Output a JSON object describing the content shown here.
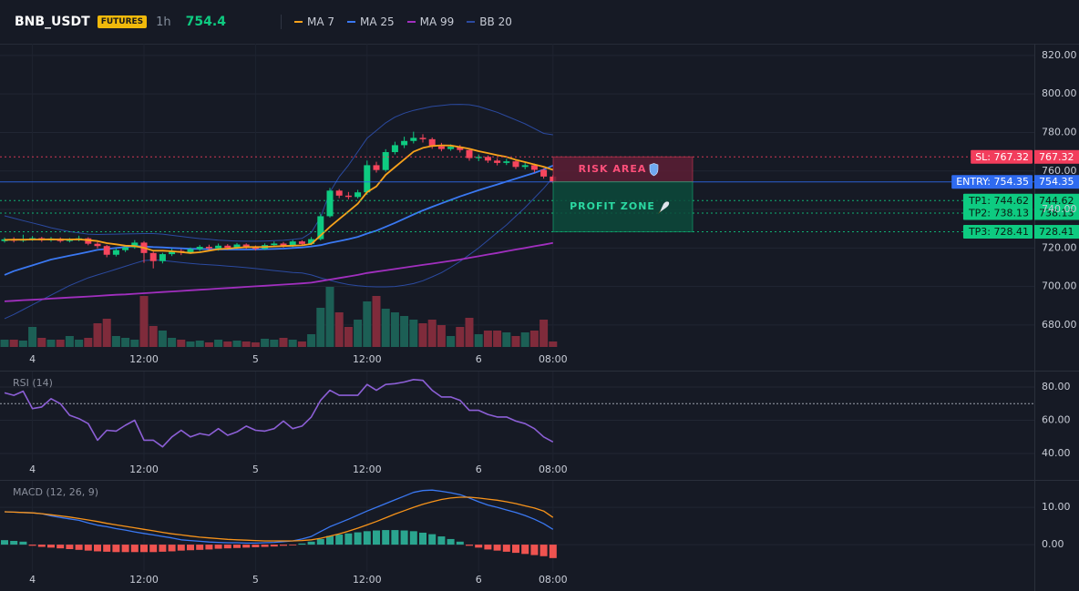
{
  "header": {
    "symbol": "BNB_USDT",
    "badge": "FUTURES",
    "interval": "1h",
    "price": 754.4
  },
  "chart_data": [
    {
      "type": "candlestick",
      "categories": [
        null,
        null,
        null,
        "4",
        null,
        null,
        null,
        null,
        null,
        null,
        null,
        null,
        null,
        null,
        null,
        "12:00",
        null,
        null,
        null,
        null,
        null,
        null,
        null,
        null,
        null,
        null,
        null,
        "5",
        null,
        null,
        null,
        null,
        null,
        null,
        null,
        null,
        null,
        null,
        null,
        "12:00",
        null,
        null,
        null,
        null,
        null,
        null,
        null,
        null,
        null,
        null,
        null,
        "6",
        null,
        null,
        null,
        null,
        null,
        null,
        null,
        "08:00"
      ],
      "open": [
        723.6,
        724.5,
        723.8,
        724.6,
        725.1,
        724.0,
        724.9,
        723.6,
        724.3,
        725.0,
        722.2,
        721.0,
        716.5,
        718.9,
        720.3,
        722.8,
        717.4,
        713.2,
        716.8,
        718.5,
        717.6,
        719.4,
        720.6,
        719.8,
        721.2,
        720.1,
        721.8,
        720.4,
        719.6,
        721.5,
        722.3,
        721.0,
        723.4,
        722.1,
        724.6,
        736.5,
        749.8,
        747.2,
        746.5,
        748.9,
        763.0,
        760.5,
        769.8,
        773.4,
        775.6,
        777.2,
        776.5,
        772.8,
        771.4,
        772.6,
        770.9,
        766.7,
        767.3,
        765.4,
        764.2,
        765.0,
        762.1,
        763.0,
        760.6,
        757.1
      ],
      "high": [
        725.4,
        725.6,
        726.9,
        726.2,
        725.8,
        725.7,
        725.5,
        725.2,
        726.4,
        725.6,
        723.1,
        721.6,
        719.8,
        721.4,
        724.1,
        723.5,
        718.1,
        717.5,
        719.6,
        719.4,
        720.3,
        721.5,
        721.7,
        722.3,
        722.0,
        722.6,
        722.4,
        721.3,
        722.4,
        723.4,
        723.1,
        724.2,
        724.0,
        725.7,
        737.6,
        751.2,
        750.6,
        749.1,
        750.2,
        765.4,
        764.8,
        771.3,
        775.2,
        777.8,
        780.4,
        779.1,
        777.4,
        774.6,
        773.8,
        773.5,
        771.8,
        768.6,
        768.1,
        766.6,
        766.3,
        765.7,
        764.2,
        763.8,
        761.4,
        757.9
      ],
      "low": [
        722.8,
        722.9,
        723.1,
        723.7,
        723.2,
        723.3,
        722.8,
        722.9,
        723.5,
        721.4,
        719.8,
        715.2,
        715.6,
        717.9,
        719.6,
        712.3,
        709.4,
        712.0,
        715.8,
        716.3,
        716.9,
        718.4,
        718.9,
        718.6,
        719.0,
        719.3,
        719.5,
        718.7,
        718.9,
        720.6,
        720.2,
        720.5,
        721.3,
        721.5,
        723.9,
        735.8,
        745.9,
        745.3,
        745.7,
        747.6,
        759.2,
        759.6,
        768.6,
        771.9,
        774.3,
        774.8,
        771.5,
        770.2,
        770.5,
        769.6,
        765.3,
        765.1,
        764.2,
        762.9,
        763.1,
        761.0,
        760.9,
        759.2,
        756.0,
        753.6
      ],
      "close": [
        724.5,
        723.8,
        724.6,
        725.1,
        724.0,
        724.9,
        723.6,
        724.3,
        725.0,
        722.2,
        721.0,
        716.5,
        718.9,
        720.3,
        722.8,
        717.4,
        713.2,
        716.8,
        718.5,
        717.6,
        719.4,
        720.6,
        719.8,
        721.2,
        720.1,
        721.8,
        720.4,
        719.6,
        721.5,
        722.3,
        721.0,
        723.4,
        722.1,
        724.6,
        736.5,
        749.8,
        747.2,
        746.5,
        748.9,
        763.0,
        760.5,
        769.8,
        773.4,
        775.6,
        777.2,
        776.5,
        772.8,
        771.4,
        772.6,
        770.9,
        766.7,
        767.3,
        765.4,
        764.2,
        765.0,
        762.1,
        763.0,
        760.6,
        757.1,
        754.4
      ],
      "volume": [
        8,
        8,
        7,
        22,
        10,
        8,
        8,
        12,
        8,
        10,
        26,
        31,
        12,
        10,
        8,
        56,
        23,
        18,
        10,
        8,
        6,
        7,
        5,
        8,
        6,
        7,
        6,
        5,
        9,
        8,
        10,
        8,
        6,
        14,
        43,
        66,
        38,
        22,
        30,
        50,
        56,
        42,
        38,
        34,
        30,
        26,
        30,
        24,
        12,
        22,
        32,
        14,
        18,
        18,
        16,
        12,
        16,
        18,
        30,
        6
      ],
      "volume_lim": [
        0,
        100
      ],
      "up_color": "#0ecb81",
      "down_color": "#f6465d",
      "volume_up_color": "#1c5f55",
      "volume_down_color": "#7f2b3b",
      "series": [
        {
          "name": "MA 7",
          "color": "#f7a21b",
          "values": [
            724.2,
            724.3,
            724.3,
            724.4,
            724.4,
            724.5,
            724.4,
            724.4,
            724.5,
            724.1,
            723.6,
            722.5,
            721.9,
            721.2,
            721.0,
            720.1,
            718.6,
            718.6,
            718.3,
            717.9,
            717.4,
            717.8,
            718.6,
            719.4,
            719.7,
            720.1,
            720.5,
            720.5,
            720.6,
            720.8,
            721.0,
            721.2,
            721.4,
            722.1,
            726.5,
            731.0,
            735.0,
            739.0,
            743.0,
            749.0,
            752.0,
            758.0,
            762.0,
            766.0,
            770.0,
            772.0,
            773.0,
            773.3,
            773.2,
            772.4,
            771.5,
            770.3,
            769.3,
            768.2,
            767.3,
            765.8,
            764.6,
            763.4,
            762.2,
            760.6
          ]
        },
        {
          "name": "MA 25",
          "color": "#3a78f2",
          "values": [
            706,
            708,
            709.5,
            711,
            712.5,
            714,
            715,
            716,
            717,
            718,
            719,
            719.5,
            720,
            720.5,
            721,
            720.8,
            720.5,
            720.3,
            720,
            719.8,
            719.6,
            719.5,
            719.4,
            719.3,
            719.2,
            719.2,
            719.2,
            719.3,
            719.4,
            719.5,
            719.7,
            720,
            720.3,
            720.8,
            721.5,
            722.6,
            723.6,
            724.6,
            725.8,
            727.5,
            729,
            731,
            733,
            735.2,
            737.4,
            739.5,
            741.4,
            743.2,
            745,
            746.8,
            748.4,
            750,
            751.5,
            753,
            754.5,
            756,
            757.5,
            759,
            760.8,
            762.8
          ]
        },
        {
          "name": "MA 99",
          "color": "#a12fbf",
          "values": [
            692.3,
            692.6,
            692.9,
            693.1,
            693.4,
            693.7,
            694,
            694.3,
            694.5,
            694.8,
            695.1,
            695.4,
            695.7,
            695.9,
            696.2,
            696.5,
            696.8,
            697.1,
            697.4,
            697.7,
            698,
            698.3,
            698.6,
            698.9,
            699.2,
            699.5,
            699.8,
            700.1,
            700.4,
            700.7,
            701,
            701.3,
            701.6,
            702,
            702.8,
            703.6,
            704.4,
            705.2,
            706,
            707,
            707.7,
            708.4,
            709.1,
            709.8,
            710.5,
            711.2,
            711.9,
            712.6,
            713.3,
            714,
            714.9,
            715.7,
            716.6,
            717.4,
            718.3,
            719.2,
            720,
            720.9,
            721.7,
            722.6
          ]
        },
        {
          "name": "BB 20",
          "color": "#2b4aa0",
          "values": [
            736.7,
            735.5,
            734.2,
            733,
            731.8,
            730.5,
            729.5,
            728.5,
            727.8,
            727.2,
            727,
            727.1,
            727.2,
            727.3,
            727.4,
            727.5,
            727.5,
            727.2,
            726.6,
            726,
            725.4,
            724.9,
            724.5,
            724.1,
            723.8,
            723.6,
            723.5,
            723.5,
            723.6,
            723.8,
            724,
            724.4,
            725,
            728,
            736,
            749,
            757,
            763,
            770,
            777,
            781,
            785,
            788,
            790,
            791.5,
            792.5,
            793.5,
            794,
            794.5,
            794.6,
            794.4,
            793.5,
            792,
            790.5,
            788.5,
            786.5,
            784.5,
            782,
            779.5,
            778.8
          ],
          "lower": [
            683.3,
            685.5,
            688,
            690.5,
            693,
            695.5,
            698,
            700.5,
            702.5,
            704.5,
            706,
            707.5,
            709,
            710.5,
            712,
            713.5,
            713.8,
            713.5,
            713,
            712.5,
            712,
            711.6,
            711.3,
            711,
            710.6,
            710.2,
            709.8,
            709.3,
            708.8,
            708.3,
            707.8,
            707.3,
            707,
            706,
            704.5,
            703.2,
            702,
            701,
            700.4,
            700,
            699.8,
            699.8,
            700,
            700.6,
            701.5,
            703,
            705,
            707.2,
            710,
            713,
            716.5,
            720,
            724,
            728,
            732,
            736.5,
            741,
            746,
            751,
            756.6
          ]
        }
      ],
      "levels": [
        {
          "label": "SL: 767.32",
          "value": 767.32,
          "color": "#f23d5c",
          "text_color": "#ffffff",
          "style": "dotted"
        },
        {
          "label": "ENTRY: 754.35",
          "value": 754.35,
          "color": "#2f6bf0",
          "text_color": "#ffffff",
          "style": "solid"
        },
        {
          "label": "TP1: 744.62",
          "value": 744.62,
          "color": "#0ecb81",
          "text_color": "#0b1a12",
          "style": "dotted"
        },
        {
          "label": "TP2: 738.13",
          "value": 738.13,
          "color": "#0ecb81",
          "text_color": "#0b1a12",
          "style": "dotted"
        },
        {
          "label": "TP3: 728.41",
          "value": 728.41,
          "color": "#0ecb81",
          "text_color": "#0b1a12",
          "style": "dotted"
        }
      ],
      "zones": [
        {
          "label": "RISK AREA",
          "color": "#f23d5c",
          "fill": "#5c1f35",
          "text_color": "#ff4f7a"
        },
        {
          "label": "PROFIT ZONE",
          "color": "#0ecb81",
          "fill": "#0c4a3b",
          "text_color": "#2bd9a2"
        }
      ],
      "ylim": [
        668.6,
        826.1
      ],
      "yticks": [
        {
          "value": 680,
          "label": "680.00"
        },
        {
          "value": 700,
          "label": "700.00"
        },
        {
          "value": 720,
          "label": "720.00"
        },
        {
          "value": 740,
          "label": "740.00"
        },
        {
          "value": 760,
          "label": "760.00"
        },
        {
          "value": 780,
          "label": "780.00"
        },
        {
          "value": 800,
          "label": "800.00"
        },
        {
          "value": 820,
          "label": "820.00"
        }
      ],
      "grid": true
    },
    {
      "type": "line",
      "title": "RSI (14)",
      "color": "#8c5fd6",
      "values": [
        76.5,
        75,
        77.5,
        67,
        68,
        73,
        70,
        63,
        61,
        58,
        48,
        54,
        53.5,
        57,
        60,
        48,
        48,
        44,
        50,
        54,
        50,
        52,
        51,
        55,
        51,
        53,
        56.5,
        54,
        53.5,
        55,
        59.5,
        55,
        56.5,
        62,
        72,
        78,
        75,
        75,
        75,
        81.5,
        78,
        81.5,
        82,
        83,
        84.5,
        84,
        78,
        74,
        74,
        72,
        66,
        66,
        63.5,
        62,
        62,
        59.5,
        58,
        55,
        50,
        47
      ],
      "hline": 70,
      "ylim": [
        35.1,
        89.3
      ],
      "yticks": [
        {
          "value": 40,
          "label": "40.00"
        },
        {
          "value": 60,
          "label": "60.00"
        },
        {
          "value": 80,
          "label": "80.00"
        }
      ],
      "grid": true
    },
    {
      "type": "macd",
      "title": "MACD (12, 26, 9)",
      "series": [
        {
          "color": "#3a78f2",
          "values": [
            8.8,
            8.7,
            8.6,
            8.5,
            8.3,
            7.7,
            7.3,
            6.9,
            6.5,
            5.8,
            5.2,
            4.8,
            4.3,
            3.9,
            3.4,
            3.0,
            2.6,
            2.2,
            1.8,
            1.3,
            1.1,
            0.9,
            0.7,
            0.6,
            0.5,
            0.5,
            0.4,
            0.4,
            0.5,
            0.6,
            0.8,
            1.0,
            1.5,
            2.2,
            3.5,
            4.8,
            5.8,
            6.8,
            7.9,
            9.0,
            10.0,
            11.0,
            12.0,
            13.0,
            14.0,
            14.5,
            14.6,
            14.3,
            13.9,
            13.4,
            12.5,
            11.5,
            10.6,
            10.0,
            9.3,
            8.6,
            7.8,
            6.8,
            5.6,
            4.1
          ]
        },
        {
          "color": "#f7931a",
          "values": [
            8.8,
            8.7,
            8.6,
            8.5,
            8.3,
            8.0,
            7.7,
            7.4,
            7.0,
            6.6,
            6.2,
            5.7,
            5.3,
            4.9,
            4.5,
            4.1,
            3.7,
            3.3,
            2.9,
            2.6,
            2.3,
            2.0,
            1.8,
            1.6,
            1.4,
            1.3,
            1.2,
            1.1,
            1.0,
            1.0,
            1.0,
            1.0,
            1.1,
            1.3,
            1.7,
            2.3,
            2.9,
            3.6,
            4.4,
            5.3,
            6.2,
            7.2,
            8.2,
            9.1,
            10.0,
            10.8,
            11.5,
            12.1,
            12.5,
            12.7,
            12.7,
            12.5,
            12.2,
            11.9,
            11.5,
            11.0,
            10.4,
            9.8,
            9.0,
            7.3
          ]
        }
      ],
      "histogram": {
        "up_color": "#2aa58f",
        "down_color": "#ef5350",
        "values": [
          1.2,
          1.0,
          0.8,
          -0.3,
          -0.6,
          -0.8,
          -1.0,
          -1.2,
          -1.4,
          -1.6,
          -1.8,
          -1.9,
          -2.0,
          -2.0,
          -2.0,
          -2.0,
          -2.0,
          -1.9,
          -1.8,
          -1.6,
          -1.5,
          -1.4,
          -1.3,
          -1.1,
          -1.0,
          -0.9,
          -0.8,
          -0.7,
          -0.6,
          -0.5,
          -0.3,
          -0.2,
          0.3,
          0.8,
          1.5,
          2.3,
          2.7,
          3.0,
          3.3,
          3.6,
          3.8,
          3.9,
          3.9,
          3.8,
          3.6,
          3.2,
          2.8,
          2.2,
          1.5,
          0.8,
          -0.3,
          -0.8,
          -1.3,
          -1.6,
          -1.9,
          -2.2,
          -2.5,
          -2.8,
          -3.1,
          -3.6
        ]
      },
      "ylim": [
        -7.3,
        17.1
      ],
      "yticks": [
        {
          "value": 0,
          "label": "0.00"
        },
        {
          "value": 10,
          "label": "10.00"
        }
      ],
      "grid": true
    }
  ]
}
